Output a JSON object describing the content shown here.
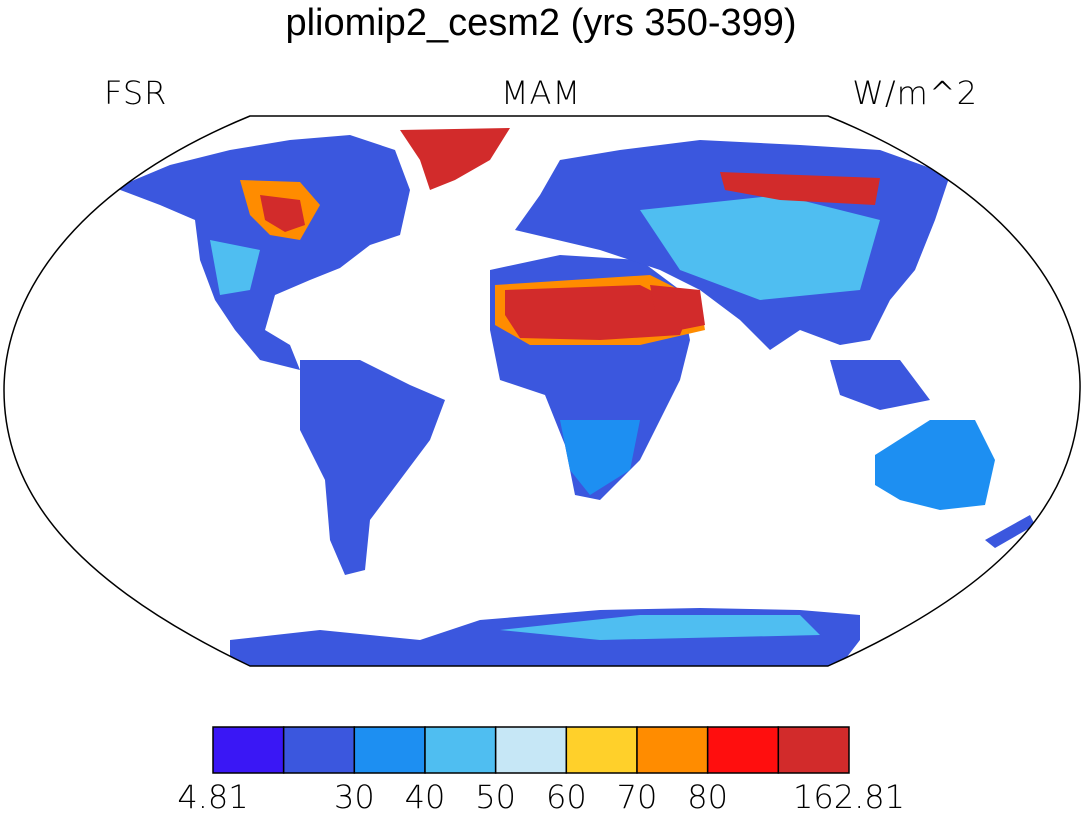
{
  "map": {
    "title": "pliomip2_cesm2 (yrs 350-399)",
    "left_label": "FSR",
    "center_label": "MAM",
    "right_label": "W/m^2",
    "projection": "Robinson",
    "continent_outlines": true
  },
  "colorbar": {
    "colors": [
      "#3a17f5",
      "#3b57de",
      "#1d8ff2",
      "#4fbef1",
      "#c6e7f6",
      "#ffd02a",
      "#ff8c00",
      "#ff0e0e",
      "#d22b2b"
    ],
    "tick_labels": [
      "4.81",
      "30",
      "40",
      "50",
      "60",
      "70",
      "80",
      "162.81"
    ]
  },
  "regions": [
    {
      "name": "north-america",
      "color": "#3b57de"
    },
    {
      "name": "south-america",
      "color": "#3b57de"
    },
    {
      "name": "africa",
      "color": "#3b57de"
    },
    {
      "name": "sahara",
      "color": "#d22b2b"
    },
    {
      "name": "eurasia",
      "color": "#3b57de"
    },
    {
      "name": "siberia-high",
      "color": "#d22b2b"
    },
    {
      "name": "greenland",
      "color": "#d22b2b"
    },
    {
      "name": "australia",
      "color": "#1d8ff2"
    },
    {
      "name": "antarctica",
      "color": "#3b57de"
    }
  ]
}
